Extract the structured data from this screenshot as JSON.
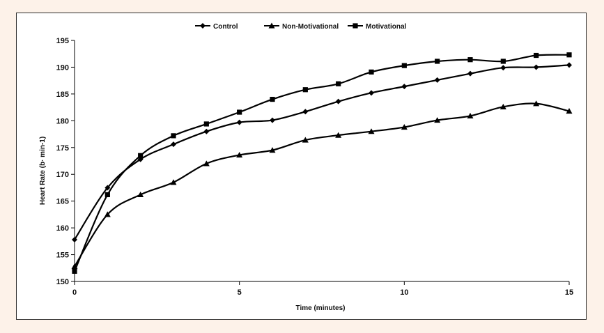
{
  "chart_data": {
    "type": "line",
    "title": "",
    "xlabel": "Time (minutes)",
    "ylabel": "Heart Rate (b· min-1)",
    "xlim": [
      0,
      15
    ],
    "ylim": [
      150,
      195
    ],
    "x_ticks": [
      0,
      5,
      10,
      15
    ],
    "y_ticks": [
      150,
      155,
      160,
      165,
      170,
      175,
      180,
      185,
      190,
      195
    ],
    "grid": false,
    "legend_position": "top-center",
    "x": [
      0,
      1,
      2,
      3,
      4,
      5,
      6,
      7,
      8,
      9,
      10,
      11,
      12,
      13,
      14,
      15
    ],
    "series": [
      {
        "name": "Control",
        "marker": "diamond",
        "color": "#000000",
        "values": [
          157.8,
          167.5,
          172.8,
          175.6,
          178.0,
          179.7,
          180.1,
          181.7,
          183.6,
          185.2,
          186.4,
          187.6,
          188.8,
          189.9,
          190.0,
          190.4
        ]
      },
      {
        "name": "Non-Motivational",
        "marker": "triangle",
        "color": "#000000",
        "values": [
          152.8,
          162.5,
          166.2,
          168.5,
          172.0,
          173.6,
          174.5,
          176.4,
          177.3,
          178.0,
          178.8,
          180.1,
          180.9,
          182.6,
          183.2,
          181.8
        ]
      },
      {
        "name": "Motivational",
        "marker": "square",
        "color": "#000000",
        "values": [
          151.9,
          166.2,
          173.5,
          177.2,
          179.4,
          181.6,
          184.0,
          185.8,
          186.9,
          189.1,
          190.3,
          191.1,
          191.4,
          191.1,
          192.2,
          192.3
        ]
      }
    ]
  }
}
